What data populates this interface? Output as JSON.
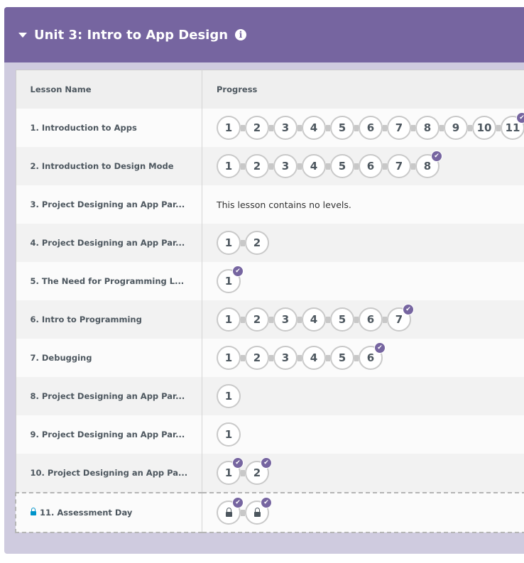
{
  "unit": {
    "title": "Unit 3: Intro to App Design",
    "info_icon": "info-icon"
  },
  "table": {
    "headers": {
      "name": "Lesson Name",
      "progress": "Progress"
    },
    "rows": [
      {
        "name": "1. Introduction to Apps",
        "levels": [
          "1",
          "2",
          "3",
          "4",
          "5",
          "6",
          "7",
          "8",
          "9",
          "10",
          "11"
        ],
        "checked": [
          10
        ]
      },
      {
        "name": "2. Introduction to Design Mode",
        "levels": [
          "1",
          "2",
          "3",
          "4",
          "5",
          "6",
          "7",
          "8"
        ],
        "checked": [
          7
        ]
      },
      {
        "name": "3. Project Designing an App Par...",
        "levels": [],
        "checked": [],
        "empty_text": "This lesson contains no levels."
      },
      {
        "name": "4. Project Designing an App Par...",
        "levels": [
          "1",
          "2"
        ],
        "checked": []
      },
      {
        "name": "5. The Need for Programming L...",
        "levels": [
          "1"
        ],
        "checked": [
          0
        ]
      },
      {
        "name": "6. Intro to Programming",
        "levels": [
          "1",
          "2",
          "3",
          "4",
          "5",
          "6",
          "7"
        ],
        "checked": [
          6
        ]
      },
      {
        "name": "7. Debugging",
        "levels": [
          "1",
          "2",
          "3",
          "4",
          "5",
          "6"
        ],
        "checked": [
          5
        ]
      },
      {
        "name": "8. Project Designing an App Par...",
        "levels": [
          "1"
        ],
        "checked": []
      },
      {
        "name": "9. Project Designing an App Par...",
        "levels": [
          "1"
        ],
        "checked": []
      },
      {
        "name": "10. Project Designing an App Pa...",
        "levels": [
          "1",
          "2"
        ],
        "checked": [
          0,
          1
        ]
      },
      {
        "name": "11. Assessment Day",
        "levels": [
          "lock",
          "lock"
        ],
        "checked": [
          0,
          1
        ],
        "locked": true
      }
    ]
  },
  "colors": {
    "header": "#7665a0",
    "background": "#cfcbdf",
    "check": "#7665a0",
    "lock": "#0094ca"
  }
}
